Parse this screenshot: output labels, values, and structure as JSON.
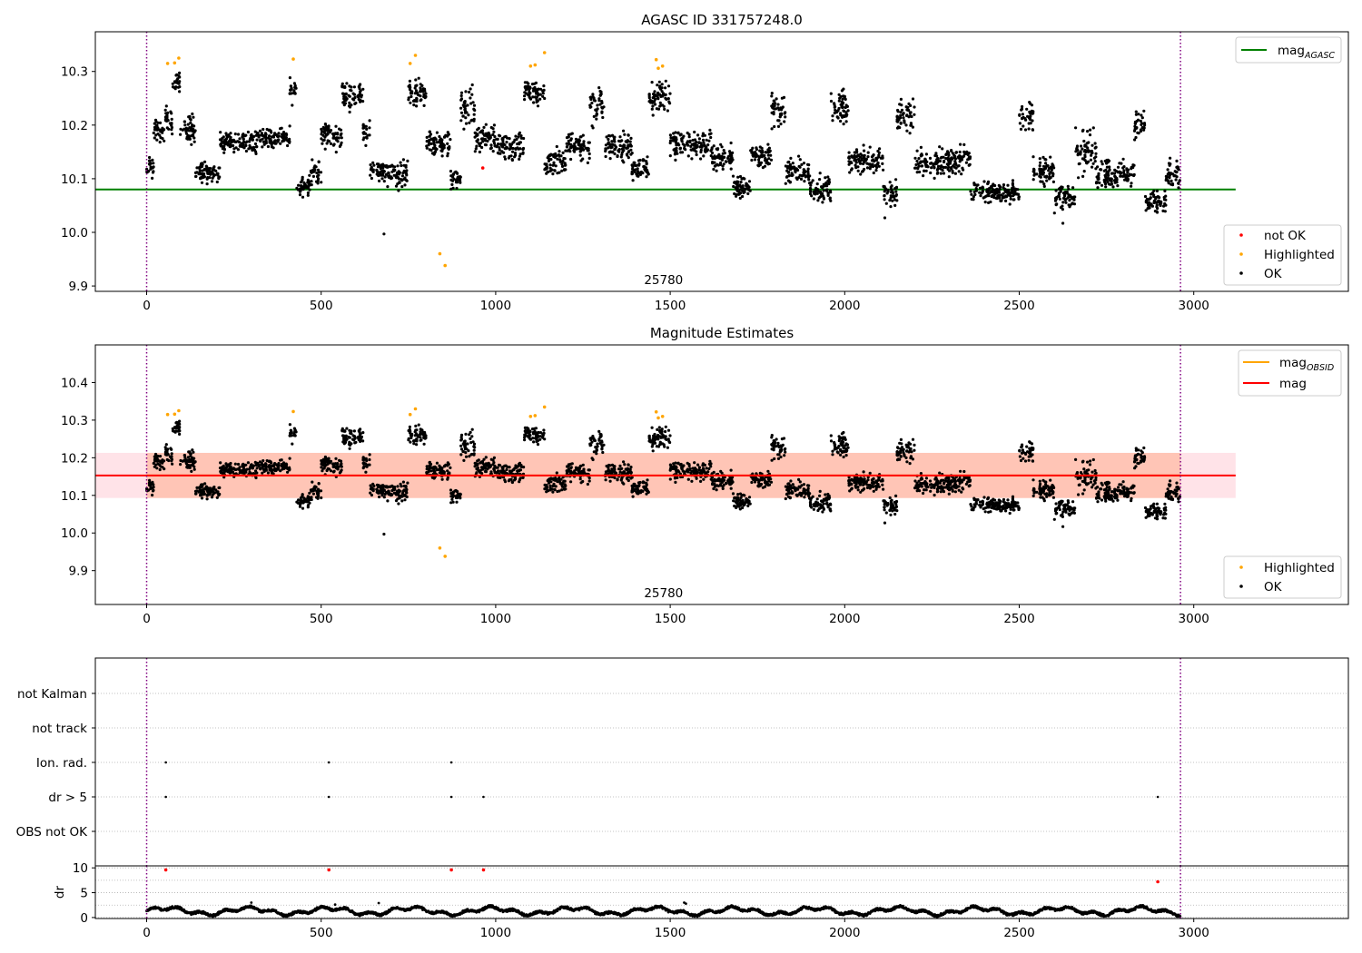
{
  "chart_data": [
    {
      "type": "scatter",
      "title": "AGASC ID 331757248.0",
      "xlim": [
        -147,
        3443
      ],
      "ylim": [
        9.89,
        10.374
      ],
      "x_ticks": [
        0,
        500,
        1000,
        1500,
        2000,
        2500,
        3000
      ],
      "y_ticks": [
        9.9,
        10.0,
        10.1,
        10.2,
        10.3
      ],
      "grid": false,
      "legend_position": "upper-right and lower-right",
      "obsid_label": "25780",
      "obsid_boundaries": [
        0,
        2962
      ],
      "lines": [
        {
          "name": "mag",
          "sub": "AGASC",
          "y": 10.08,
          "x_range": [
            -147,
            3120
          ],
          "color": "#008000"
        }
      ],
      "series": [
        {
          "name": "not OK",
          "color": "#ff0000",
          "points": [
            [
              963,
              10.12
            ]
          ]
        },
        {
          "name": "Highlighted",
          "color": "#ffa500",
          "points": [
            [
              60,
              10.315
            ],
            [
              80,
              10.316
            ],
            [
              92,
              10.325
            ],
            [
              420,
              10.323
            ],
            [
              755,
              10.315
            ],
            [
              770,
              10.33
            ],
            [
              840,
              9.96
            ],
            [
              855,
              9.938
            ],
            [
              1100,
              10.31
            ],
            [
              1113,
              10.312
            ],
            [
              1140,
              10.335
            ],
            [
              1460,
              10.322
            ],
            [
              1466,
              10.306
            ],
            [
              1478,
              10.31
            ]
          ]
        },
        {
          "name": "OK",
          "color": "#000000",
          "description": "approximately 3000 measurements between x=0 and x=2962, magnitudes ~10.02–10.30 with periodic variability"
        }
      ]
    },
    {
      "type": "scatter",
      "title": "Magnitude Estimates",
      "xlim": [
        -147,
        3443
      ],
      "ylim": [
        9.81,
        10.5
      ],
      "x_ticks": [
        0,
        500,
        1000,
        1500,
        2000,
        2500,
        3000
      ],
      "y_ticks": [
        9.9,
        10.0,
        10.1,
        10.2,
        10.3,
        10.4
      ],
      "grid": false,
      "obsid_label": "25780",
      "obsid_boundaries": [
        0,
        2962
      ],
      "lines": [
        {
          "name": "mag",
          "sub": "OBSID",
          "y": 10.153,
          "x_range": [
            0,
            2962
          ],
          "color": "#ffa500"
        },
        {
          "name": "mag",
          "y": 10.153,
          "x_range": [
            -147,
            3120
          ],
          "color": "#ff0000"
        }
      ],
      "bands": [
        {
          "y_range": [
            10.093,
            10.213
          ],
          "x_range": [
            -147,
            3120
          ],
          "color": "#ffc0cb"
        },
        {
          "y_range": [
            10.093,
            10.213
          ],
          "x_range": [
            0,
            2962
          ],
          "color": "#ffa07a"
        }
      ],
      "series": [
        {
          "name": "Highlighted",
          "color": "#ffa500",
          "points": [
            [
              60,
              10.315
            ],
            [
              80,
              10.316
            ],
            [
              92,
              10.325
            ],
            [
              420,
              10.323
            ],
            [
              755,
              10.315
            ],
            [
              770,
              10.33
            ],
            [
              840,
              9.96
            ],
            [
              855,
              9.938
            ],
            [
              1100,
              10.31
            ],
            [
              1113,
              10.312
            ],
            [
              1140,
              10.335
            ],
            [
              1460,
              10.322
            ],
            [
              1466,
              10.306
            ],
            [
              1478,
              10.31
            ]
          ]
        },
        {
          "name": "OK",
          "color": "#000000",
          "description": "same magnitude measurements as the upper panel"
        }
      ]
    },
    {
      "type": "scatter",
      "title": "",
      "xlim": [
        -147,
        3443
      ],
      "categories": [
        "OBS not OK",
        "dr > 5",
        "Ion. rad.",
        "not track",
        "not Kalman"
      ],
      "grid": true,
      "obsid_boundaries": [
        0,
        2962
      ],
      "flag_points": [
        {
          "category": "Ion. rad.",
          "x": [
            55,
            522,
            873
          ]
        },
        {
          "category": "dr > 5",
          "x": [
            55,
            522,
            873,
            965,
            2897
          ]
        }
      ]
    },
    {
      "type": "scatter",
      "title": "",
      "ylabel": "dr",
      "xlim": [
        -147,
        3443
      ],
      "ylim": [
        -0.2,
        10.4
      ],
      "x_ticks": [
        0,
        500,
        1000,
        1500,
        2000,
        2500,
        3000
      ],
      "y_ticks": [
        0,
        5,
        10
      ],
      "grid": true,
      "obsid_boundaries": [
        0,
        2962
      ],
      "series": [
        {
          "name": "dr > 5",
          "color": "#ff0000",
          "points": [
            [
              55,
              9.6
            ],
            [
              522,
              9.6
            ],
            [
              873,
              9.6
            ],
            [
              965,
              9.6
            ],
            [
              2897,
              7.2
            ]
          ]
        },
        {
          "name": "dr",
          "color": "#000000",
          "description": "typical radial offset 0.5–2.5 with small occasional spikes up to ~3"
        }
      ]
    }
  ],
  "legends": {
    "panel1_lines": [
      {
        "label": "mag",
        "sub": "AGASC",
        "color": "#008000"
      }
    ],
    "panel1_points": [
      {
        "label": "not OK",
        "color": "#ff0000"
      },
      {
        "label": "Highlighted",
        "color": "#ffa500"
      },
      {
        "label": "OK",
        "color": "#000000"
      }
    ],
    "panel2_lines": [
      {
        "label": "mag",
        "sub": "OBSID",
        "color": "#ffa500"
      },
      {
        "label": "mag",
        "color": "#ff0000"
      }
    ],
    "panel2_points": [
      {
        "label": "Highlighted",
        "color": "#ffa500"
      },
      {
        "label": "OK",
        "color": "#000000"
      }
    ]
  }
}
